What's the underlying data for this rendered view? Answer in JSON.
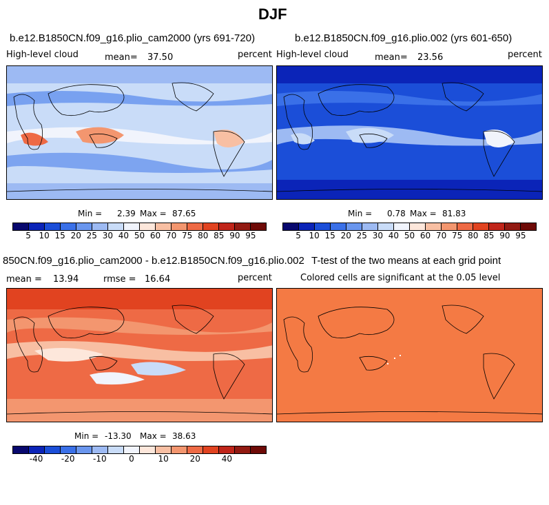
{
  "figure": {
    "title": "DJF"
  },
  "colors": {
    "abs_scale": [
      "#08086e",
      "#0b24b8",
      "#1b4ed8",
      "#3a70e8",
      "#6a96ee",
      "#9dbaf3",
      "#c9dcf8",
      "#f1f4fc",
      "#fde7db",
      "#f8bfa3",
      "#f3966f",
      "#ee6a45",
      "#e14320",
      "#c0251a",
      "#921a12",
      "#6e0a07"
    ],
    "diff_scale": [
      "#08086e",
      "#0b24b8",
      "#1b4ed8",
      "#3a70e8",
      "#6a96ee",
      "#9dbaf3",
      "#c9dcf8",
      "#f1f4fc",
      "#fde7db",
      "#f8bfa3",
      "#f3966f",
      "#ee6a45",
      "#e14320",
      "#c0251a",
      "#921a12",
      "#6e0a07"
    ]
  },
  "panels": {
    "p1": {
      "title": "b.e12.B1850CN.f09_g16.plio_cam2000 (yrs 691-720)",
      "variable": "High-level cloud",
      "mean_label": "mean=",
      "mean_value": "37.50",
      "units": "percent",
      "min_label": "Min =",
      "min_value": "2.39",
      "max_label": "Max =",
      "max_value": "87.65",
      "ticks": [
        "5",
        "10",
        "15",
        "20",
        "25",
        "30",
        "40",
        "50",
        "60",
        "70",
        "75",
        "80",
        "85",
        "90",
        "95"
      ]
    },
    "p2": {
      "title": "b.e12.B1850CN.f09_g16.plio.002 (yrs 601-650)",
      "variable": "High-level cloud",
      "mean_label": "mean=",
      "mean_value": "23.56",
      "units": "percent",
      "min_label": "Min =",
      "min_value": "0.78",
      "max_label": "Max =",
      "max_value": "81.83",
      "ticks": [
        "5",
        "10",
        "15",
        "20",
        "25",
        "30",
        "40",
        "50",
        "60",
        "70",
        "75",
        "80",
        "85",
        "90",
        "95"
      ]
    },
    "p3": {
      "title": "850CN.f09_g16.plio_cam2000 - b.e12.B1850CN.f09_g16.plio.002",
      "mean_label": "mean =",
      "mean_value": "13.94",
      "rmse_label": "rmse =",
      "rmse_value": "16.64",
      "units": "percent",
      "min_label": "Min =",
      "min_value": "-13.30",
      "max_label": "Max =",
      "max_value": "38.63",
      "ticks": [
        "-40",
        "-20",
        "-10",
        "0",
        "10",
        "20",
        "40"
      ]
    },
    "p4": {
      "title": "T-test of the two means at each grid point",
      "subtitle": "Colored cells are significant at the 0.05 level",
      "fill_color": "#f47a44"
    }
  },
  "chart_data": [
    {
      "type": "heatmap",
      "title": "b.e12.B1850CN.f09_g16.plio_cam2000 (yrs 691-720)",
      "field": "High-level cloud",
      "units": "percent",
      "mean": 37.5,
      "min": 2.39,
      "max": 87.65,
      "contour_levels": [
        5,
        10,
        15,
        20,
        25,
        30,
        40,
        50,
        60,
        70,
        75,
        80,
        85,
        90,
        95
      ]
    },
    {
      "type": "heatmap",
      "title": "b.e12.B1850CN.f09_g16.plio.002 (yrs 601-650)",
      "field": "High-level cloud",
      "units": "percent",
      "mean": 23.56,
      "min": 0.78,
      "max": 81.83,
      "contour_levels": [
        5,
        10,
        15,
        20,
        25,
        30,
        40,
        50,
        60,
        70,
        75,
        80,
        85,
        90,
        95
      ]
    },
    {
      "type": "heatmap",
      "title": "850CN.f09_g16.plio_cam2000 - b.e12.B1850CN.f09_g16.plio.002",
      "units": "percent",
      "mean": 13.94,
      "rmse": 16.64,
      "min": -13.3,
      "max": 38.63,
      "tick_labels": [
        -40,
        -20,
        -10,
        0,
        10,
        20,
        40
      ]
    },
    {
      "type": "heatmap",
      "title": "T-test of the two means at each grid point",
      "subtitle": "Colored cells are significant at the 0.05 level"
    }
  ]
}
